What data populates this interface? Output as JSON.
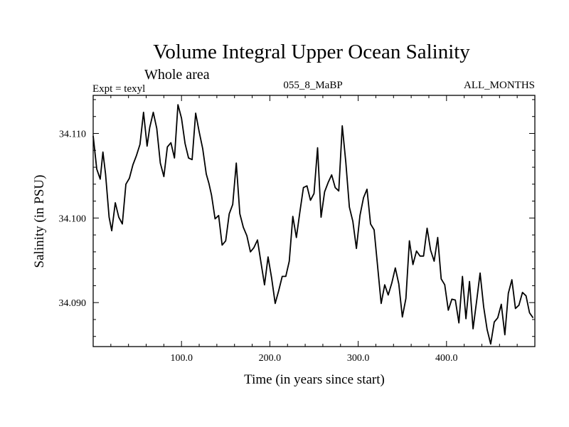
{
  "chart_data": {
    "type": "line",
    "title": "Volume Integral Upper Ocean Salinity",
    "subtitle": "Whole area",
    "header_left": "Expt = texyl",
    "header_center": "055_8_MaBP",
    "header_right": "ALL_MONTHS",
    "xlabel": "Time (in years since start)",
    "ylabel": "Salinity (in PSU)",
    "xlim": [
      0,
      500
    ],
    "ylim": [
      34.0848,
      34.1145
    ],
    "xticks": [
      100,
      200,
      300,
      400
    ],
    "xtick_labels": [
      "100.0",
      "200.0",
      "300.0",
      "400.0"
    ],
    "yticks": [
      34.09,
      34.1,
      34.11
    ],
    "ytick_labels": [
      "34.090",
      "34.100",
      "34.110"
    ],
    "grid": false,
    "series": [
      {
        "color": "#000000",
        "x": [
          0,
          4,
          8,
          11,
          14,
          18,
          21,
          25,
          29,
          33,
          37,
          41,
          45,
          49,
          53,
          57,
          61,
          64,
          68,
          72,
          76,
          80,
          84,
          88,
          92,
          96,
          100,
          104,
          108,
          112,
          116,
          120,
          124,
          128,
          131,
          134,
          138,
          142,
          146,
          150,
          154,
          158,
          162,
          166,
          170,
          174,
          178,
          182,
          186,
          190,
          194,
          198,
          202,
          206,
          210,
          214,
          218,
          222,
          226,
          230,
          234,
          238,
          242,
          246,
          250,
          254,
          258,
          262,
          266,
          270,
          274,
          278,
          282,
          286,
          290,
          294,
          298,
          302,
          306,
          310,
          314,
          318,
          322,
          326,
          330,
          334,
          338,
          342,
          346,
          350,
          354,
          358,
          362,
          366,
          370,
          374,
          378,
          382,
          386,
          390,
          394,
          398,
          402,
          406,
          410,
          414,
          418,
          422,
          426,
          430,
          434,
          438,
          442,
          446,
          450,
          454,
          458,
          462,
          466,
          470,
          474,
          478,
          482,
          486,
          490,
          494,
          498
        ],
        "values": [
          34.1097,
          34.1058,
          34.1046,
          34.1078,
          34.1052,
          34.1001,
          34.0985,
          34.1018,
          34.1001,
          34.0993,
          34.104,
          34.1047,
          34.1063,
          34.1074,
          34.1087,
          34.1125,
          34.1085,
          34.1107,
          34.1125,
          34.1106,
          34.1065,
          34.1049,
          34.1084,
          34.1089,
          34.1071,
          34.1134,
          34.1118,
          34.1088,
          34.1071,
          34.1069,
          34.1124,
          34.1102,
          34.1082,
          34.1052,
          34.1041,
          34.1027,
          34.0999,
          34.1003,
          34.0968,
          34.0973,
          34.1005,
          34.1016,
          34.1065,
          34.1005,
          34.0989,
          34.0979,
          34.096,
          34.0965,
          34.0974,
          34.0947,
          34.0921,
          34.0954,
          34.0929,
          34.0899,
          34.0914,
          34.0931,
          34.0931,
          34.0949,
          34.1002,
          34.0977,
          34.1007,
          34.1036,
          34.1038,
          34.1021,
          34.1029,
          34.1083,
          34.1001,
          34.1031,
          34.1042,
          34.1051,
          34.1036,
          34.1032,
          34.1109,
          34.1066,
          34.1013,
          34.0996,
          34.0964,
          34.1003,
          34.1024,
          34.1034,
          34.0993,
          34.0986,
          34.0943,
          34.0899,
          34.0921,
          34.0909,
          34.0923,
          34.0941,
          34.0922,
          34.0883,
          34.0905,
          34.0973,
          34.0945,
          34.0961,
          34.0955,
          34.0955,
          34.0988,
          34.0962,
          34.0949,
          34.0977,
          34.0928,
          34.0921,
          34.0891,
          34.0904,
          34.0903,
          34.0876,
          34.0931,
          34.0881,
          34.0925,
          34.0869,
          34.0901,
          34.0935,
          34.0895,
          34.0868,
          34.0851,
          34.0877,
          34.0882,
          34.0898,
          34.0862,
          34.0911,
          34.0927,
          34.0893,
          34.0897,
          34.0912,
          34.0908,
          34.0888,
          34.0882
        ]
      }
    ]
  }
}
